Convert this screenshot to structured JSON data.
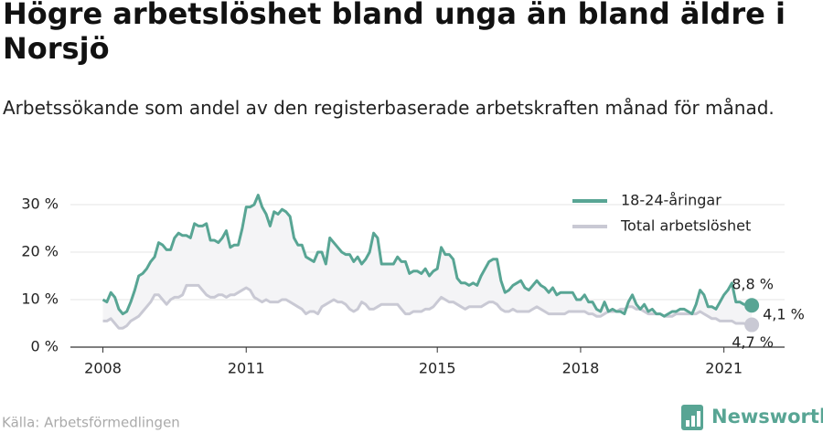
{
  "chart_data": {
    "type": "line",
    "title": "Högre arbetslöshet bland unga än bland äldre i Norsjö",
    "subtitle": "Arbetssökande som andel av den registerbaserade arbetskraften månad för månad.",
    "source": "Källa: Arbetsförmedlingen",
    "brand": "Newsworthy",
    "annotation": "4,1 %",
    "xlim": [
      2007.32,
      2022.27
    ],
    "xticks": [
      2008,
      2011,
      2015,
      2018,
      2021
    ],
    "ylim": [
      0,
      33
    ],
    "yticks": [
      {
        "value": 0,
        "label": "0 %"
      },
      {
        "value": 10,
        "label": "10 %"
      },
      {
        "value": 20,
        "label": "20 %"
      },
      {
        "value": 30,
        "label": "30 %"
      }
    ],
    "grid": true,
    "legend": "top-right",
    "x": [
      2008,
      2008.083,
      2008.167,
      2008.25,
      2008.333,
      2008.417,
      2008.5,
      2008.583,
      2008.667,
      2008.75,
      2008.833,
      2008.917,
      2009,
      2009.083,
      2009.167,
      2009.25,
      2009.333,
      2009.417,
      2009.5,
      2009.583,
      2009.667,
      2009.75,
      2009.833,
      2009.917,
      2010,
      2010.083,
      2010.167,
      2010.25,
      2010.333,
      2010.417,
      2010.5,
      2010.583,
      2010.667,
      2010.75,
      2010.833,
      2010.917,
      2011,
      2011.083,
      2011.167,
      2011.25,
      2011.333,
      2011.417,
      2011.5,
      2011.583,
      2011.667,
      2011.75,
      2011.833,
      2011.917,
      2012,
      2012.083,
      2012.167,
      2012.25,
      2012.333,
      2012.417,
      2012.5,
      2012.583,
      2012.667,
      2012.75,
      2012.833,
      2012.917,
      2013,
      2013.083,
      2013.167,
      2013.25,
      2013.333,
      2013.417,
      2013.5,
      2013.583,
      2013.667,
      2013.75,
      2013.833,
      2013.917,
      2014,
      2014.083,
      2014.167,
      2014.25,
      2014.333,
      2014.417,
      2014.5,
      2014.583,
      2014.667,
      2014.75,
      2014.833,
      2014.917,
      2015,
      2015.083,
      2015.167,
      2015.25,
      2015.333,
      2015.417,
      2015.5,
      2015.583,
      2015.667,
      2015.75,
      2015.833,
      2015.917,
      2016,
      2016.083,
      2016.167,
      2016.25,
      2016.333,
      2016.417,
      2016.5,
      2016.583,
      2016.667,
      2016.75,
      2016.833,
      2016.917,
      2017,
      2017.083,
      2017.167,
      2017.25,
      2017.333,
      2017.417,
      2017.5,
      2017.583,
      2017.667,
      2017.75,
      2017.833,
      2017.917,
      2018,
      2018.083,
      2018.167,
      2018.25,
      2018.333,
      2018.417,
      2018.5,
      2018.583,
      2018.667,
      2018.75,
      2018.833,
      2018.917,
      2019,
      2019.083,
      2019.167,
      2019.25,
      2019.333,
      2019.417,
      2019.5,
      2019.583,
      2019.667,
      2019.75,
      2019.833,
      2019.917,
      2020,
      2020.083,
      2020.167,
      2020.25,
      2020.333,
      2020.417,
      2020.5,
      2020.583,
      2020.667,
      2020.75,
      2020.833,
      2020.917,
      2021,
      2021.083,
      2021.167,
      2021.25,
      2021.333,
      2021.417,
      2021.5,
      2021.583
    ],
    "series": [
      {
        "name": "18-24-åringar",
        "color": "#58a594",
        "end_label": "8,8 %",
        "values": [
          10,
          9.5,
          11.5,
          10.5,
          8,
          7,
          7.5,
          9.5,
          12,
          15,
          15.5,
          16.5,
          18,
          19,
          22,
          21.5,
          20.5,
          20.5,
          23,
          24,
          23.5,
          23.5,
          23,
          26,
          25.5,
          25.5,
          26,
          22.5,
          22.5,
          22,
          23,
          24.5,
          21,
          21.5,
          21.5,
          25,
          29.5,
          29.5,
          30,
          32,
          29.5,
          28,
          25.5,
          28.5,
          28,
          29,
          28.5,
          27.5,
          23,
          21.5,
          21.5,
          19,
          18.5,
          18,
          20,
          20,
          17.5,
          23,
          22,
          21,
          20,
          19.5,
          19.5,
          18,
          19,
          17.5,
          18.5,
          20,
          24,
          23,
          17.5,
          17.5,
          17.5,
          17.5,
          19,
          18,
          18,
          15.5,
          16,
          16,
          15.5,
          16.5,
          15,
          16,
          16.5,
          21,
          19.5,
          19.5,
          18.5,
          14.5,
          13.5,
          13.5,
          13,
          13.5,
          13,
          15,
          16.5,
          18,
          18.5,
          18.5,
          14,
          11.5,
          12,
          13,
          13.5,
          14,
          12.5,
          12,
          13,
          14,
          13,
          12.5,
          11.5,
          12.5,
          11,
          11.5,
          11.5,
          11.5,
          11.5,
          10,
          10,
          11,
          9.5,
          9.5,
          8,
          7.5,
          9.5,
          7.5,
          8,
          7.5,
          7.5,
          7,
          9.5,
          11,
          9,
          8,
          9,
          7.5,
          8,
          7,
          7,
          6.5,
          7,
          7.5,
          7.5,
          8,
          8,
          7.5,
          7,
          9,
          12,
          11,
          8.5,
          8.5,
          8,
          9.5,
          11,
          12,
          13.5,
          9.5,
          9.5,
          9,
          9,
          8.8
        ]
      },
      {
        "name": "Total arbetslöshet",
        "color": "#c9c9d4",
        "end_label": "4,7 %",
        "values": [
          5.5,
          5.5,
          6,
          5,
          4,
          4,
          4.5,
          5.5,
          6,
          6.5,
          7.5,
          8.5,
          9.5,
          11,
          11,
          10,
          9,
          10,
          10.5,
          10.5,
          11,
          13,
          13,
          13,
          13,
          12,
          11,
          10.5,
          10.5,
          11,
          11,
          10.5,
          11,
          11,
          11.5,
          12,
          12.5,
          12,
          10.5,
          10,
          9.5,
          10,
          9.5,
          9.5,
          9.5,
          10,
          10,
          9.5,
          9,
          8.5,
          8,
          7,
          7.5,
          7.5,
          7,
          8.5,
          9,
          9.5,
          10,
          9.5,
          9.5,
          9,
          8,
          7.5,
          8,
          9.5,
          9,
          8,
          8,
          8.5,
          9,
          9,
          9,
          9,
          9,
          8,
          7,
          7,
          7.5,
          7.5,
          7.5,
          8,
          8,
          8.5,
          9.5,
          10.5,
          10,
          9.5,
          9.5,
          9,
          8.5,
          8,
          8.5,
          8.5,
          8.5,
          8.5,
          9,
          9.5,
          9.5,
          9,
          8,
          7.5,
          7.5,
          8,
          7.5,
          7.5,
          7.5,
          7.5,
          8,
          8.5,
          8,
          7.5,
          7,
          7,
          7,
          7,
          7,
          7.5,
          7.5,
          7.5,
          7.5,
          7.5,
          7,
          7,
          6.5,
          6.5,
          7,
          7.5,
          7.5,
          7.5,
          8,
          8,
          8.5,
          8.5,
          8,
          8,
          7.5,
          7,
          7,
          7,
          7,
          6.5,
          6.5,
          6.5,
          7,
          7,
          7,
          7,
          7,
          7,
          7.5,
          7,
          6.5,
          6,
          6,
          5.5,
          5.5,
          5.5,
          5.5,
          5,
          5,
          5,
          4.7,
          4.7
        ]
      }
    ]
  }
}
